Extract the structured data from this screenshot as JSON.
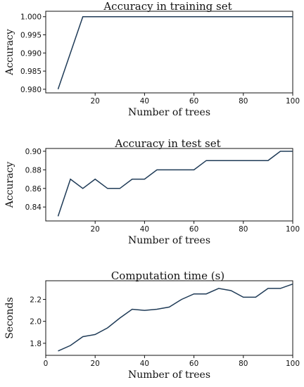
{
  "chart_data": [
    {
      "type": "line",
      "title": "Accuracy in training set",
      "xlabel": "Number of trees",
      "ylabel": "Accuracy",
      "xlim": [
        0,
        100
      ],
      "ylim": [
        0.979,
        1.0015
      ],
      "xticks": [
        20,
        40,
        60,
        80,
        100
      ],
      "yticks": [
        0.98,
        0.985,
        0.99,
        0.995,
        1.0
      ],
      "ytick_labels": [
        "0.980",
        "0.985",
        "0.990",
        "0.995",
        "1.000"
      ],
      "series": [
        {
          "x": [
            5,
            15,
            100
          ],
          "y": [
            0.98,
            1.0,
            1.0
          ]
        }
      ],
      "grid": false
    },
    {
      "type": "line",
      "title": "Accuracy in test set",
      "xlabel": "Number of trees",
      "ylabel": "Accuracy",
      "xlim": [
        0,
        100
      ],
      "ylim": [
        0.825,
        0.903
      ],
      "xticks": [
        20,
        40,
        60,
        80,
        100
      ],
      "yticks": [
        0.84,
        0.86,
        0.88,
        0.9
      ],
      "ytick_labels": [
        "0.84",
        "0.86",
        "0.88",
        "0.90"
      ],
      "series": [
        {
          "x": [
            5,
            10,
            15,
            20,
            25,
            30,
            35,
            40,
            45,
            50,
            55,
            60,
            65,
            70,
            75,
            80,
            85,
            90,
            95,
            100
          ],
          "y": [
            0.83,
            0.87,
            0.86,
            0.87,
            0.86,
            0.86,
            0.87,
            0.87,
            0.88,
            0.88,
            0.88,
            0.88,
            0.89,
            0.89,
            0.89,
            0.89,
            0.89,
            0.89,
            0.9,
            0.9
          ]
        }
      ],
      "grid": false
    },
    {
      "type": "line",
      "title": "Computation time (s)",
      "xlabel": "Number of trees",
      "ylabel": "Seconds",
      "xlim": [
        0,
        100
      ],
      "ylim": [
        1.69,
        2.37
      ],
      "xticks": [
        0,
        20,
        40,
        60,
        80,
        100
      ],
      "yticks": [
        1.8,
        2.0,
        2.2
      ],
      "ytick_labels": [
        "1.8",
        "2.0",
        "2.2"
      ],
      "series": [
        {
          "x": [
            5,
            10,
            15,
            20,
            25,
            30,
            35,
            40,
            45,
            50,
            55,
            60,
            65,
            70,
            75,
            80,
            85,
            90,
            95,
            100
          ],
          "y": [
            1.73,
            1.78,
            1.86,
            1.88,
            1.94,
            2.03,
            2.11,
            2.1,
            2.11,
            2.13,
            2.2,
            2.25,
            2.25,
            2.3,
            2.28,
            2.22,
            2.22,
            2.3,
            2.3,
            2.34
          ]
        }
      ],
      "grid": false
    }
  ]
}
